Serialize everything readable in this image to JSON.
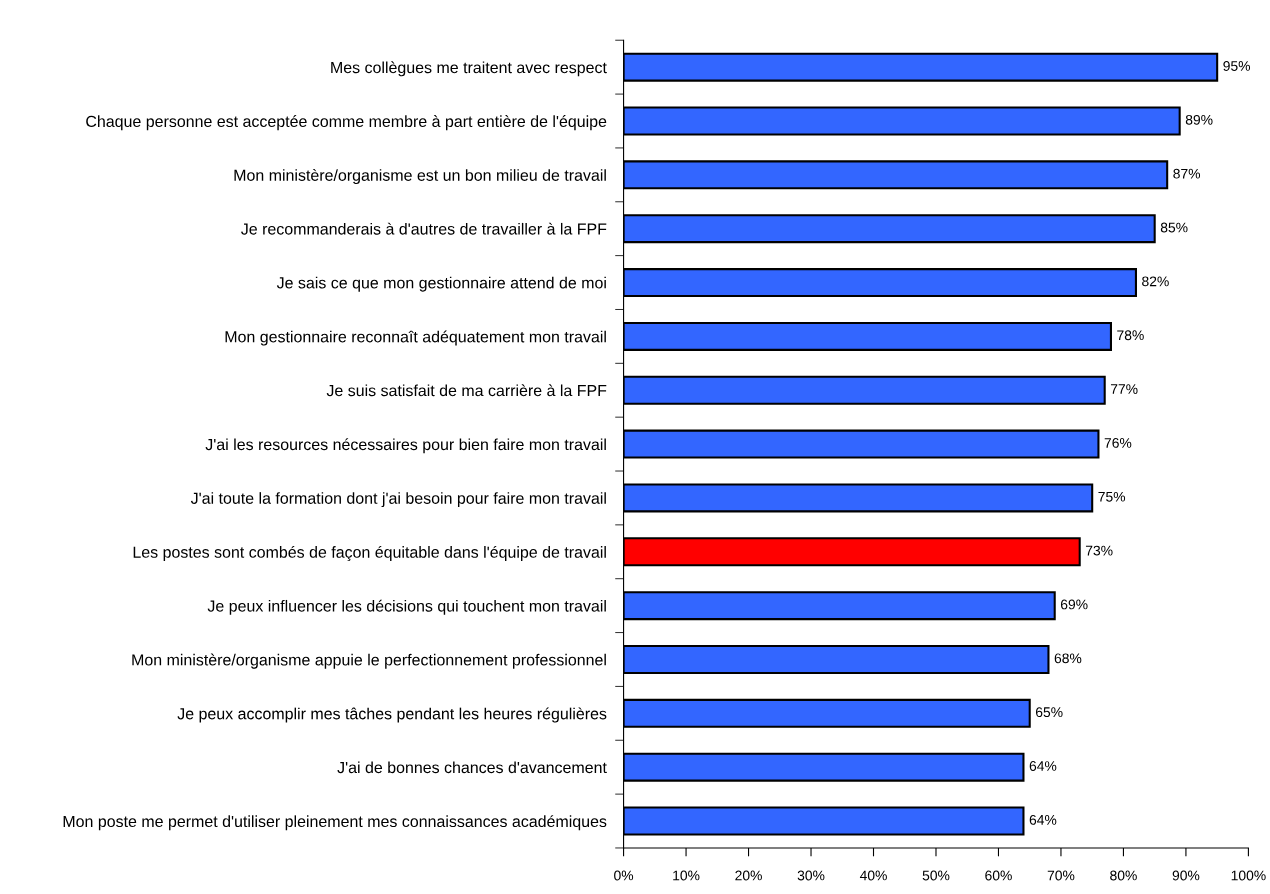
{
  "chart_data": {
    "type": "bar",
    "orientation": "horizontal",
    "categories": [
      "Mes collègues me traitent avec respect",
      "Chaque personne est acceptée comme membre à part entière de l'équipe",
      "Mon ministère/organisme est un bon milieu de travail",
      "Je recommanderais à d'autres de travailler à la FPF",
      "Je sais ce que mon gestionnaire attend de moi",
      "Mon gestionnaire reconnaît adéquatement mon travail",
      "Je suis satisfait de ma carrière à la FPF",
      "J'ai les resources nécessaires pour bien faire mon travail",
      "J'ai toute la formation dont j'ai besoin pour faire mon travail",
      "Les postes sont combés de façon équitable dans l'équipe de travail",
      "Je peux influencer les décisions qui touchent mon travail",
      "Mon ministère/organisme appuie le perfectionnement professionnel",
      "Je peux accomplir mes tâches pendant les heures régulières",
      "J'ai de bonnes chances d'avancement",
      "Mon poste me permet d'utiliser pleinement mes connaissances académiques"
    ],
    "values": [
      95,
      89,
      87,
      85,
      82,
      78,
      77,
      76,
      75,
      73,
      69,
      68,
      65,
      64,
      64
    ],
    "value_labels": [
      "95%",
      "89%",
      "87%",
      "85%",
      "82%",
      "78%",
      "77%",
      "76%",
      "75%",
      "73%",
      "69%",
      "68%",
      "65%",
      "64%",
      "64%"
    ],
    "colors": [
      "#3366ff",
      "#3366ff",
      "#3366ff",
      "#3366ff",
      "#3366ff",
      "#3366ff",
      "#3366ff",
      "#3366ff",
      "#3366ff",
      "#ff0000",
      "#3366ff",
      "#3366ff",
      "#3366ff",
      "#3366ff",
      "#3366ff"
    ],
    "xlim": [
      0,
      100
    ],
    "xticks": [
      {
        "value": 0,
        "label": "0%"
      },
      {
        "value": 10,
        "label": "10%"
      },
      {
        "value": 20,
        "label": "20%"
      },
      {
        "value": 30,
        "label": "30%"
      },
      {
        "value": 40,
        "label": "40%"
      },
      {
        "value": 50,
        "label": "50%"
      },
      {
        "value": 60,
        "label": "60%"
      },
      {
        "value": 70,
        "label": "70%"
      },
      {
        "value": 80,
        "label": "80%"
      },
      {
        "value": 90,
        "label": "90%"
      },
      {
        "value": 100,
        "label": "100%"
      }
    ],
    "grid": false,
    "legend": false
  }
}
